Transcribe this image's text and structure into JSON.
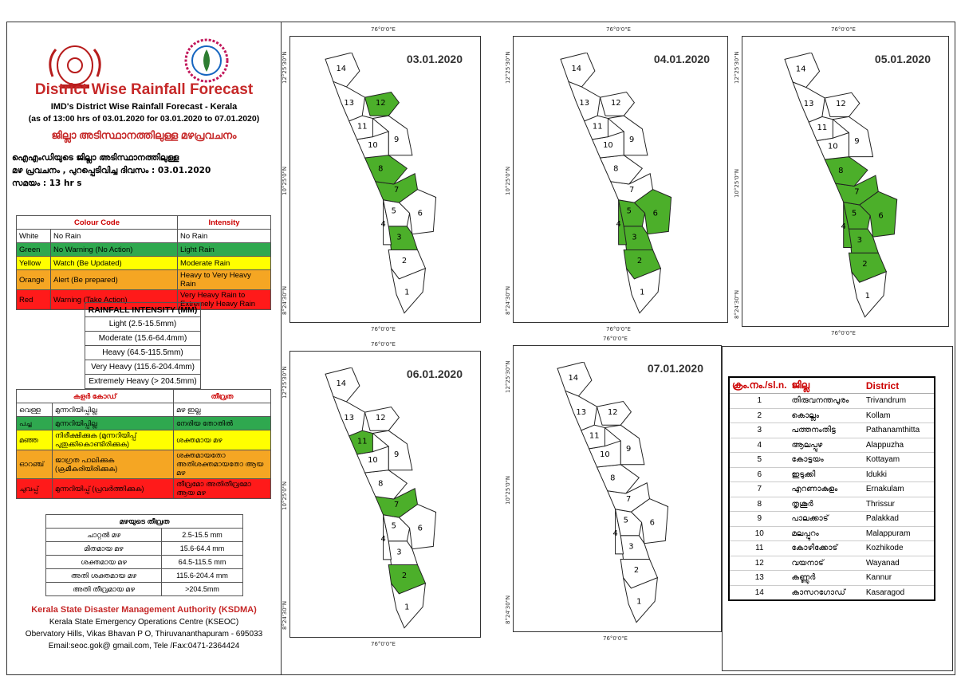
{
  "header": {
    "title": "District Wise Rainfall Forecast",
    "subtitle": "IMD's District Wise Rainfall Forecast - Kerala",
    "issue_range": "(as of 13:00 hrs of 03.01.2020  for 03.01.2020  to 07.01.2020)",
    "ml_title": "ജില്ലാ അടിസ്ഥാനത്തിലുള്ള മഴപ്രവചനം",
    "ml_line1": "ഐഎംഡിയുടെ ജില്ലാ അടിസ്ഥാനത്തിലുള്ള",
    "ml_line2": "മഴ പ്രവചനം , പുറപ്പെടിവിച്ച ദിവസം : 03.01.2020",
    "ml_line3": "സമയം : 13  hr s"
  },
  "colour_code": {
    "headers": [
      "Colour Code",
      "Intensity"
    ],
    "rows": [
      {
        "colour": "White",
        "code": "No Rain",
        "intensity": "No Rain",
        "bg": "#ffffff"
      },
      {
        "colour": "Green",
        "code": "No Warning (No Action)",
        "intensity": "Light Rain",
        "bg": "#2fa84f"
      },
      {
        "colour": "Yellow",
        "code": "Watch (Be Updated)",
        "intensity": "Moderate Rain",
        "bg": "#ffff00"
      },
      {
        "colour": "Orange",
        "code": "Alert (Be prepared)",
        "intensity": "Heavy to Very Heavy Rain",
        "bg": "#f5a623"
      },
      {
        "colour": "Red",
        "code": "Warning (Take Action)",
        "intensity": "Very Heavy Rain to Extremely Heavy Rain",
        "bg": "#ff1a1a"
      }
    ]
  },
  "rainfall_intensity": {
    "title": "RAINFALL INTENSITY (MM)",
    "rows": [
      "Light (2.5-15.5mm)",
      "Moderate (15.6-64.4mm)",
      "Heavy (64.5-115.5mm)",
      "Very Heavy (115.6-204.4mm)",
      "Extremely Heavy (> 204.5mm)"
    ]
  },
  "ml_colour_code": {
    "headers": [
      "കളർ കോഡ്",
      "തീവ്രത"
    ],
    "rows": [
      {
        "colour": "വെള്ള",
        "code": "മുന്നറിയിപ്പില്ല",
        "intensity": "മഴ ഇല്ല",
        "bg": "#ffffff"
      },
      {
        "colour": "പച്ച",
        "code": "മുന്നറിയിപ്പില്ല",
        "intensity": "നേരിയ തോതിൽ",
        "bg": "#2fa84f"
      },
      {
        "colour": "മഞ്ഞ",
        "code": "നിരീക്ഷിക്കുക (മുന്നറിയിപ്പ് പുതുക്കികൊണ്ടിരിക്കുക)",
        "intensity": "ശക്തമായ മഴ",
        "bg": "#ffff00"
      },
      {
        "colour": "ഓറഞ്ച്",
        "code": "ജാഗ്രത പാലിക്കുക (ക്രമീകരിയിരിക്കുക)",
        "intensity": "ശക്തമായതോ അതിശക്തമായതോ ആയ മഴ",
        "bg": "#f5a623"
      },
      {
        "colour": "ചുവപ്പ്",
        "code": "മുന്നറിയിപ്പ് (പ്രവർത്തിക്കുക)",
        "intensity": "തീവ്രമോ അതിതീവ്രമോ ആയ മഴ",
        "bg": "#ff1a1a"
      }
    ]
  },
  "ml_intensity": {
    "title": "മഴയുടെ തീവ്രത",
    "rows": [
      {
        "name": "ചാറ്റൽ മഴ",
        "range": "2.5-15.5 mm"
      },
      {
        "name": "മിതമായ മഴ",
        "range": "15.6-64.4 mm"
      },
      {
        "name": "ശക്തമായ മഴ",
        "range": "64.5-115.5 mm"
      },
      {
        "name": "അതി ശക്തമായ മഴ",
        "range": "115.6-204.4 mm"
      },
      {
        "name": "അതി തീവ്രമായ മഴ",
        "range": ">204.5mm"
      }
    ]
  },
  "footer": {
    "org": "Kerala State Disaster Management Authority (KSDMA)",
    "line1": "Kerala State Emergency Operations Centre (KSEOC)",
    "line2": "Obervatory Hills, Vikas Bhavan P O, Thiruvananthapuram - 695033",
    "line3": "Email:seoc.gok@ gmail.com, Tele /Fax:0471-2364424"
  },
  "map_labels": {
    "lon": "76°0'0\"E",
    "lat_top": "12°25'30\"N",
    "lat_mid": "10°25'0\"N",
    "lat_bot": "8°24'30\"N"
  },
  "maps": [
    {
      "date": "03.01.2020",
      "green": [
        3,
        7,
        8,
        12
      ]
    },
    {
      "date": "04.01.2020",
      "green": [
        2,
        3,
        4,
        5,
        6
      ]
    },
    {
      "date": "05.01.2020",
      "green": [
        2,
        3,
        4,
        5,
        6,
        7,
        8
      ]
    },
    {
      "date": "06.01.2020",
      "green": [
        2,
        7,
        11
      ]
    },
    {
      "date": "07.01.2020",
      "green": []
    }
  ],
  "districts": {
    "headers": [
      "ക്രം.നം./sl.n.",
      "ജില്ല",
      "District"
    ],
    "rows": [
      {
        "no": "1",
        "ml": "തിരുവനന്തപുരം",
        "en": "Trivandrum"
      },
      {
        "no": "2",
        "ml": "കൊല്ലം",
        "en": "Kollam"
      },
      {
        "no": "3",
        "ml": "പത്തനംതിട്ട",
        "en": "Pathanamthitta"
      },
      {
        "no": "4",
        "ml": "ആലപ്പുഴ",
        "en": "Alappuzha"
      },
      {
        "no": "5",
        "ml": "കോട്ടയം",
        "en": "Kottayam"
      },
      {
        "no": "6",
        "ml": "ഇടുക്കി",
        "en": "Idukki"
      },
      {
        "no": "7",
        "ml": "എറണാകുളം",
        "en": "Ernakulam"
      },
      {
        "no": "8",
        "ml": "തൃശൂർ",
        "en": "Thrissur"
      },
      {
        "no": "9",
        "ml": "പാലക്കാട്",
        "en": "Palakkad"
      },
      {
        "no": "10",
        "ml": "മലപ്പുറം",
        "en": "Malappuram"
      },
      {
        "no": "11",
        "ml": "കോഴിക്കോട്",
        "en": "Kozhikode"
      },
      {
        "no": "12",
        "ml": "വയനാട്",
        "en": "Wayanad"
      },
      {
        "no": "13",
        "ml": "കണ്ണൂർ",
        "en": "Kannur"
      },
      {
        "no": "14",
        "ml": "കാസറഗോഡ്",
        "en": "Kasaragod"
      }
    ]
  },
  "colors": {
    "green": "#4caf2a",
    "white": "#ffffff",
    "title_red": "#c62828"
  }
}
